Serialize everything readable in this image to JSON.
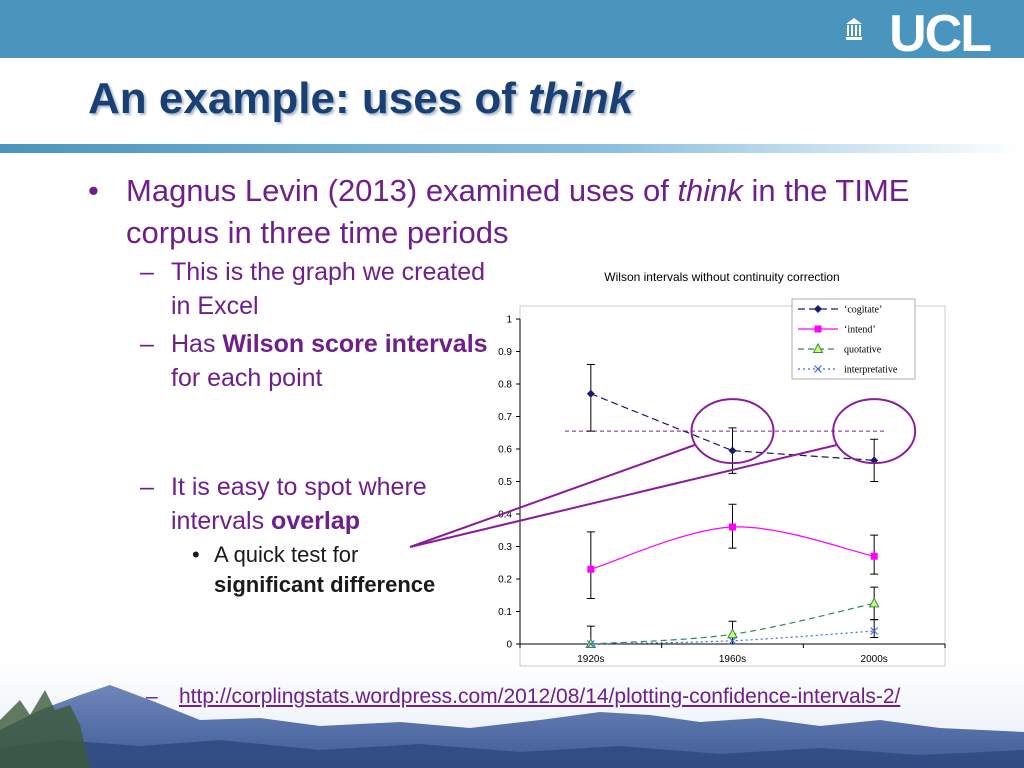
{
  "header": {
    "logo_text": "UCL",
    "title_prefix": "An example: uses of ",
    "title_em": "think"
  },
  "bullets": {
    "main_part1": "Magnus Levin (2013) examined uses of ",
    "main_em": "think",
    "main_part2": " in the TIME corpus in three time periods",
    "sub1": "This is the graph we created in Excel",
    "sub2_pre": "Has ",
    "sub2_bold": "Wilson score intervals",
    "sub2_post": " for each point",
    "sub3_pre": "It is easy to spot where intervals ",
    "sub3_bold": "overlap",
    "subsub_pre": "A quick test for",
    "subsub_bold": "significant difference",
    "link_text": "http://corplingstats.wordpress.com/2012/08/14/plotting-confidence-intervals-2/",
    "bullet_dot": "•",
    "dash": "–"
  },
  "chart_data": {
    "type": "line",
    "title": "Wilson intervals without continuity correction",
    "categories": [
      "1920s",
      "1960s",
      "2000s"
    ],
    "ylim": [
      0,
      1
    ],
    "yticks": [
      "0",
      "0.1",
      "0.2",
      "0.3",
      "0.4",
      "0.5",
      "0.6",
      "0.7",
      "0.8",
      "0.9",
      "1"
    ],
    "grid": false,
    "legend_position": "top-right",
    "series": [
      {
        "name": "‘cogitate’",
        "values": [
          0.77,
          0.595,
          0.565
        ],
        "lower": [
          0.655,
          0.525,
          0.5
        ],
        "upper": [
          0.86,
          0.665,
          0.63
        ],
        "color": "#1a1a6e",
        "marker": "diamond",
        "dash": "7,4",
        "smooth": false
      },
      {
        "name": "‘intend’",
        "values": [
          0.23,
          0.36,
          0.27
        ],
        "lower": [
          0.14,
          0.295,
          0.215
        ],
        "upper": [
          0.345,
          0.43,
          0.335
        ],
        "color": "#ff00ff",
        "marker": "square",
        "dash": "",
        "smooth": true
      },
      {
        "name": "quotative",
        "values": [
          0.0,
          0.03,
          0.125
        ],
        "lower": [
          0.0,
          0.0,
          0.075
        ],
        "upper": [
          0.055,
          0.07,
          0.175
        ],
        "color": "#2e8b57",
        "marker": "triangle",
        "dash": "6,4",
        "smooth": true
      },
      {
        "name": "interpretative",
        "values": [
          0.0,
          0.01,
          0.04
        ],
        "lower": [
          0.0,
          0.0,
          0.02
        ],
        "upper": [
          0.0,
          0.0,
          0.075
        ],
        "color": "#4169e1",
        "marker": "x",
        "dash": "2,3",
        "smooth": true
      }
    ],
    "annotations": {
      "reference_line_value": 0.655,
      "reference_line_color": "#8b1a9c",
      "highlight_circles": [
        "1960s",
        "2000s"
      ]
    }
  }
}
